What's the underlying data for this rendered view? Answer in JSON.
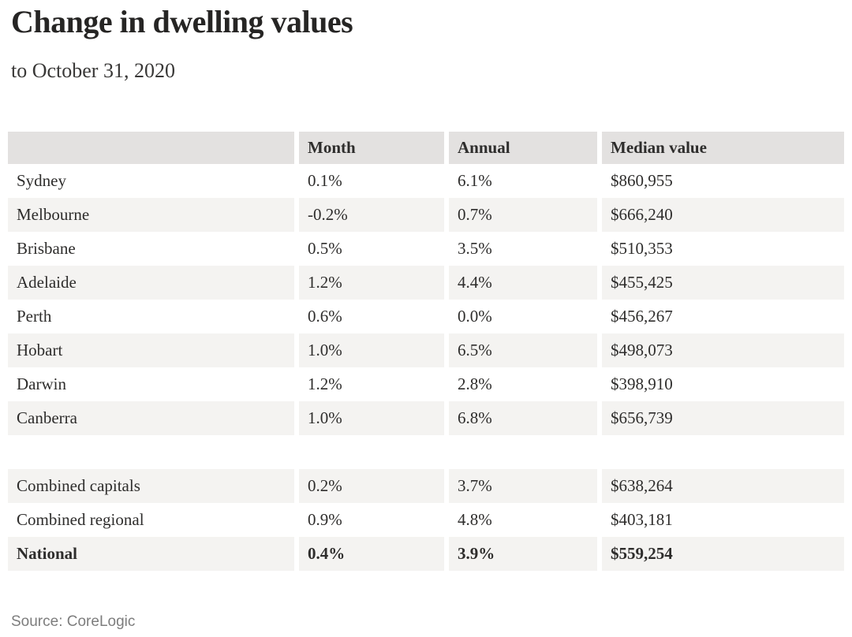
{
  "colors": {
    "header_bg": "#e3e1e0",
    "stripe_bg": "#f4f3f1",
    "text": "#2e2d2c",
    "source_text": "#7d7d7d"
  },
  "chart_data": {
    "type": "table",
    "title": "Change in dwelling values",
    "subtitle": "to October 31, 2020",
    "columns": [
      "",
      "Month",
      "Annual",
      "Median value"
    ],
    "city_rows": [
      {
        "label": "Sydney",
        "month": "0.1%",
        "annual": "6.1%",
        "median_value": "$860,955",
        "bold": false
      },
      {
        "label": "Melbourne",
        "month": "-0.2%",
        "annual": "0.7%",
        "median_value": "$666,240",
        "bold": false
      },
      {
        "label": "Brisbane",
        "month": "0.5%",
        "annual": "3.5%",
        "median_value": "$510,353",
        "bold": false
      },
      {
        "label": "Adelaide",
        "month": "1.2%",
        "annual": "4.4%",
        "median_value": "$455,425",
        "bold": false
      },
      {
        "label": "Perth",
        "month": "0.6%",
        "annual": "0.0%",
        "median_value": "$456,267",
        "bold": false
      },
      {
        "label": "Hobart",
        "month": "1.0%",
        "annual": "6.5%",
        "median_value": "$498,073",
        "bold": false
      },
      {
        "label": "Darwin",
        "month": "1.2%",
        "annual": "2.8%",
        "median_value": "$398,910",
        "bold": false
      },
      {
        "label": "Canberra",
        "month": "1.0%",
        "annual": "6.8%",
        "median_value": "$656,739",
        "bold": false
      }
    ],
    "summary_rows": [
      {
        "label": "Combined capitals",
        "month": "0.2%",
        "annual": "3.7%",
        "median_value": "$638,264",
        "bold": false
      },
      {
        "label": "Combined regional",
        "month": "0.9%",
        "annual": "4.8%",
        "median_value": "$403,181",
        "bold": false
      },
      {
        "label": "National",
        "month": "0.4%",
        "annual": "3.9%",
        "median_value": "$559,254",
        "bold": true
      }
    ],
    "source": "Source: CoreLogic"
  }
}
